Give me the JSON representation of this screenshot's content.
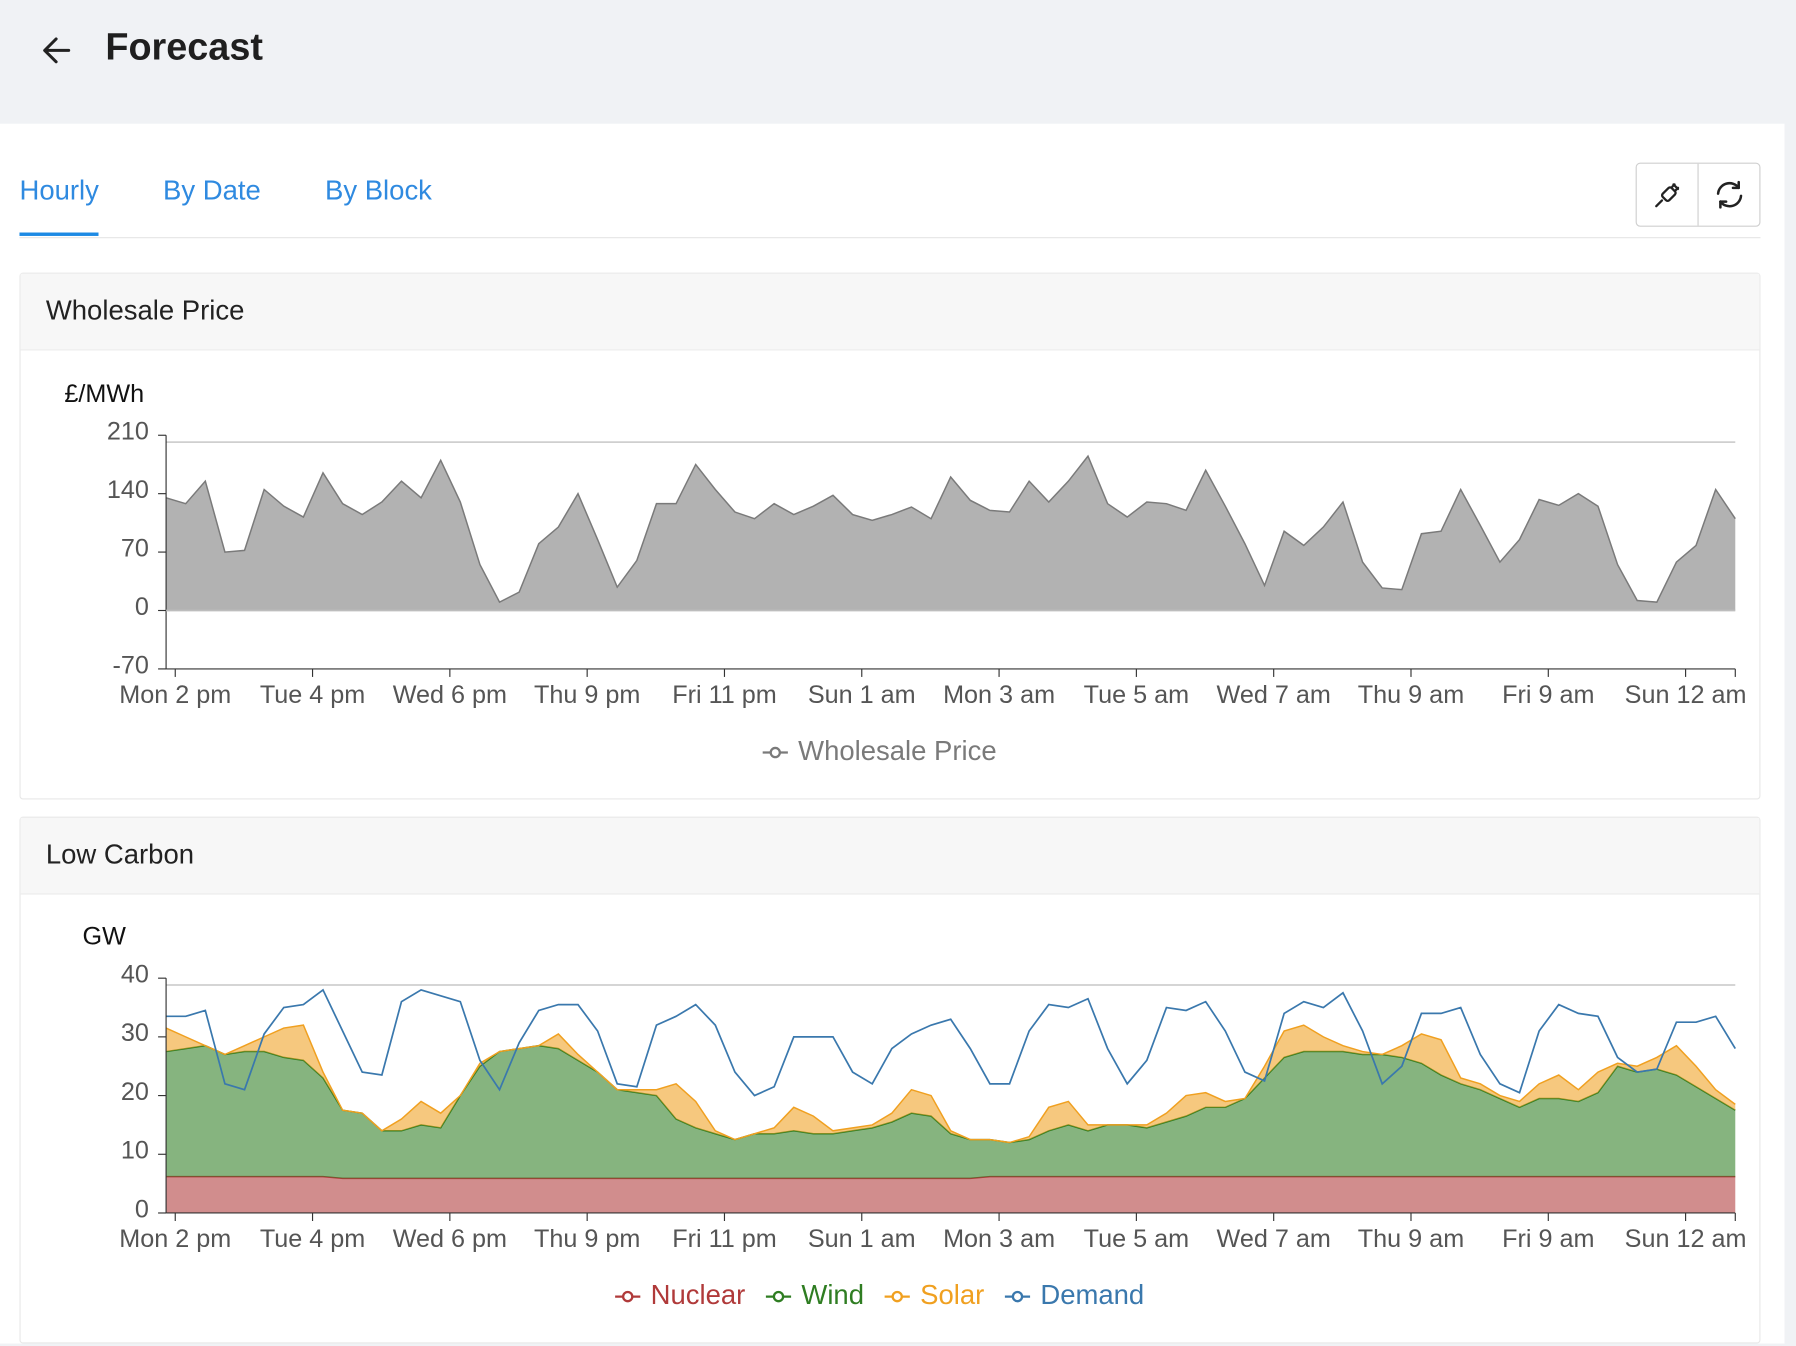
{
  "header": {
    "title": "Forecast"
  },
  "tabs": [
    "Hourly",
    "By Date",
    "By Block"
  ],
  "active_tab": 0,
  "chart_data": [
    {
      "type": "area",
      "title": "Wholesale Price",
      "ylabel": "£/MWh",
      "stacked": false,
      "categories": [
        "Mon 2 pm",
        null,
        null,
        null,
        null,
        null,
        null,
        "Tue 4 pm",
        null,
        null,
        null,
        null,
        null,
        null,
        "Wed 6 pm",
        null,
        null,
        null,
        null,
        null,
        null,
        "Thu 9 pm",
        null,
        null,
        null,
        null,
        null,
        null,
        "Fri 11 pm",
        null,
        null,
        null,
        null,
        null,
        null,
        "Sun 1 am",
        null,
        null,
        null,
        null,
        null,
        null,
        "Mon 3 am",
        null,
        null,
        null,
        null,
        null,
        null,
        "Tue 5 am",
        null,
        null,
        null,
        null,
        null,
        null,
        "Wed 7 am",
        null,
        null,
        null,
        null,
        null,
        null,
        "Thu 9 am",
        null,
        null,
        null,
        null,
        null,
        null,
        "Fri 9 am",
        null,
        null,
        null,
        null,
        null,
        null,
        "Sun 12 am",
        null,
        null,
        null
      ],
      "series": [
        {
          "name": "Wholesale Price",
          "kind": "area",
          "color": "#7a7a7a",
          "values": [
            135,
            128,
            155,
            70,
            72,
            145,
            125,
            112,
            165,
            128,
            115,
            130,
            155,
            135,
            180,
            130,
            55,
            10,
            22,
            80,
            100,
            140,
            85,
            28,
            60,
            128,
            128,
            175,
            145,
            118,
            110,
            128,
            115,
            125,
            138,
            115,
            108,
            115,
            124,
            110,
            160,
            132,
            120,
            118,
            155,
            130,
            155,
            185,
            128,
            112,
            130,
            128,
            120,
            168,
            125,
            80,
            30,
            95,
            78,
            100,
            130,
            58,
            27,
            25,
            92,
            95,
            145,
            102,
            58,
            85,
            133,
            126,
            140,
            125,
            55,
            12,
            10,
            58,
            78,
            145,
            110
          ]
        }
      ],
      "ylim": [
        -70,
        210
      ],
      "yticks": [
        -70,
        0,
        70,
        140,
        210
      ]
    },
    {
      "type": "area",
      "title": "Low Carbon",
      "ylabel": "GW",
      "stacked": true,
      "categories": [
        "Mon 2 pm",
        null,
        null,
        null,
        null,
        null,
        null,
        "Tue 4 pm",
        null,
        null,
        null,
        null,
        null,
        null,
        "Wed 6 pm",
        null,
        null,
        null,
        null,
        null,
        null,
        "Thu 9 pm",
        null,
        null,
        null,
        null,
        null,
        null,
        "Fri 11 pm",
        null,
        null,
        null,
        null,
        null,
        null,
        "Sun 1 am",
        null,
        null,
        null,
        null,
        null,
        null,
        "Mon 3 am",
        null,
        null,
        null,
        null,
        null,
        null,
        "Tue 5 am",
        null,
        null,
        null,
        null,
        null,
        null,
        "Wed 7 am",
        null,
        null,
        null,
        null,
        null,
        null,
        "Thu 9 am",
        null,
        null,
        null,
        null,
        null,
        null,
        "Fri 9 am",
        null,
        null,
        null,
        null,
        null,
        null,
        "Sun 12 am",
        null,
        null,
        null
      ],
      "series": [
        {
          "name": "Nuclear",
          "kind": "area",
          "color": "#b03a3a",
          "values": [
            6.2,
            6.2,
            6.2,
            6.2,
            6.2,
            6.2,
            6.2,
            6.2,
            6.2,
            5.9,
            5.9,
            5.9,
            5.9,
            5.9,
            5.9,
            5.9,
            5.9,
            5.9,
            5.9,
            5.9,
            5.9,
            5.9,
            5.9,
            5.9,
            5.9,
            5.9,
            5.9,
            5.9,
            5.9,
            5.9,
            5.9,
            5.9,
            5.9,
            5.9,
            5.9,
            5.9,
            5.9,
            5.9,
            5.9,
            5.9,
            5.9,
            5.9,
            6.2,
            6.2,
            6.2,
            6.2,
            6.2,
            6.2,
            6.2,
            6.2,
            6.2,
            6.2,
            6.2,
            6.2,
            6.2,
            6.2,
            6.2,
            6.2,
            6.2,
            6.2,
            6.2,
            6.2,
            6.2,
            6.2,
            6.2,
            6.2,
            6.2,
            6.2,
            6.2,
            6.2,
            6.2,
            6.2,
            6.2,
            6.2,
            6.2,
            6.2,
            6.2,
            6.2,
            6.2,
            6.2,
            6.2
          ]
        },
        {
          "name": "Wind",
          "kind": "area",
          "color": "#2f7d22",
          "values": [
            21.3,
            21.8,
            22.3,
            20.8,
            21.3,
            21.3,
            20.3,
            19.8,
            16.8,
            11.6,
            11.1,
            8.1,
            8.1,
            9.1,
            8.6,
            14.1,
            19.1,
            21.6,
            22.1,
            22.6,
            22.1,
            20.1,
            18.1,
            15.1,
            14.6,
            14.1,
            10.1,
            8.6,
            7.6,
            6.6,
            7.6,
            7.6,
            8.1,
            7.6,
            7.6,
            8.1,
            8.6,
            9.6,
            11.1,
            10.6,
            7.6,
            6.6,
            6.3,
            5.8,
            6.3,
            7.8,
            8.8,
            7.8,
            8.8,
            8.8,
            8.3,
            9.3,
            10.3,
            11.8,
            11.8,
            13.3,
            16.8,
            20.3,
            21.3,
            21.3,
            21.3,
            20.8,
            20.8,
            20.3,
            19.3,
            17.3,
            15.8,
            14.8,
            13.3,
            11.8,
            13.3,
            13.3,
            12.8,
            14.3,
            18.8,
            17.8,
            18.3,
            17.3,
            15.3,
            13.3,
            11.3
          ]
        },
        {
          "name": "Solar",
          "kind": "area",
          "color": "#f0a020",
          "values": [
            4,
            2,
            0,
            0,
            1,
            2.5,
            5,
            6,
            1,
            0,
            0,
            0,
            2,
            4,
            2.5,
            0,
            0.5,
            0,
            0,
            0,
            2.5,
            1,
            0,
            0,
            0.5,
            1,
            6,
            4.5,
            0.5,
            0,
            0,
            1,
            4,
            3,
            0.5,
            0.5,
            0.5,
            1.5,
            4,
            3.5,
            0.5,
            0,
            0,
            0,
            0.5,
            4,
            4,
            1,
            0,
            0,
            0.5,
            1.5,
            3.5,
            2.5,
            1,
            0,
            2,
            4.5,
            4.5,
            2.5,
            1,
            0.5,
            0,
            2,
            5,
            6,
            1,
            1,
            0.5,
            1,
            2.5,
            4,
            2,
            3.5,
            0.5,
            1,
            2,
            5,
            3.5,
            1.5,
            1
          ]
        },
        {
          "name": "Demand",
          "kind": "line",
          "color": "#3a78ad",
          "values": [
            33.5,
            33.5,
            34.5,
            22,
            21,
            30.5,
            35,
            35.5,
            38,
            31,
            24,
            23.5,
            36,
            38,
            37,
            36,
            26,
            21,
            29,
            34.5,
            35.5,
            35.5,
            31,
            22,
            21.5,
            32,
            33.5,
            35.5,
            32,
            24,
            20,
            21.5,
            30,
            30,
            30,
            24,
            22,
            28,
            30.5,
            32,
            33,
            28,
            22,
            22,
            31,
            35.5,
            35,
            36.5,
            28,
            22,
            26,
            35,
            34.5,
            36,
            31,
            24,
            22.5,
            34,
            36,
            35,
            37.5,
            31,
            22,
            25,
            34,
            34,
            35,
            27,
            22,
            20.5,
            31,
            35.5,
            34,
            33.5,
            26.5,
            24,
            24.5,
            32.5,
            32.5,
            33.5,
            28
          ]
        }
      ],
      "ylim": [
        0,
        40
      ],
      "yticks": [
        0,
        10,
        20,
        30,
        40
      ]
    }
  ]
}
